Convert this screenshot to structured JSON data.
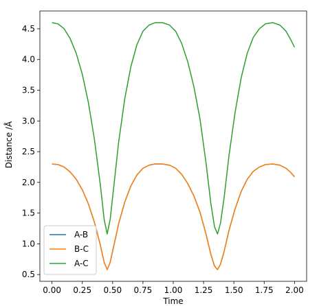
{
  "chart_data": {
    "type": "line",
    "title": "",
    "xlabel": "Time",
    "ylabel": "Distance /Å",
    "xlim": [
      -0.1,
      2.1
    ],
    "ylim": [
      0.39,
      4.79
    ],
    "xticks": [
      "0.00",
      "0.25",
      "0.50",
      "0.75",
      "1.00",
      "1.25",
      "1.50",
      "1.75",
      "2.00"
    ],
    "yticks": [
      "0.5",
      "1.0",
      "1.5",
      "2.0",
      "2.5",
      "3.0",
      "3.5",
      "4.0",
      "4.5"
    ],
    "grid": false,
    "legend_position": "lower-left",
    "series": [
      {
        "name": "A-B",
        "color": "#1f77b4",
        "x": [
          0.0,
          0.05,
          0.1,
          0.15,
          0.2,
          0.25,
          0.3,
          0.35,
          0.4,
          0.43,
          0.455,
          0.48,
          0.51,
          0.55,
          0.6,
          0.65,
          0.7,
          0.75,
          0.8,
          0.85,
          0.91,
          0.97,
          1.02,
          1.07,
          1.12,
          1.17,
          1.22,
          1.27,
          1.31,
          1.34,
          1.365,
          1.39,
          1.42,
          1.46,
          1.51,
          1.56,
          1.61,
          1.66,
          1.71,
          1.76,
          1.82,
          1.88,
          1.93,
          1.97,
          2.0
        ],
        "y": [
          2.3,
          2.29,
          2.25,
          2.17,
          2.05,
          1.88,
          1.65,
          1.35,
          0.97,
          0.7,
          0.58,
          0.7,
          0.97,
          1.33,
          1.68,
          1.94,
          2.12,
          2.23,
          2.28,
          2.3,
          2.3,
          2.28,
          2.23,
          2.13,
          1.98,
          1.78,
          1.52,
          1.16,
          0.83,
          0.64,
          0.58,
          0.67,
          0.88,
          1.22,
          1.57,
          1.85,
          2.05,
          2.18,
          2.25,
          2.29,
          2.3,
          2.28,
          2.23,
          2.16,
          2.09
        ]
      },
      {
        "name": "B-C",
        "color": "#ff7f0e",
        "x": [
          0.0,
          0.05,
          0.1,
          0.15,
          0.2,
          0.25,
          0.3,
          0.35,
          0.4,
          0.43,
          0.455,
          0.48,
          0.51,
          0.55,
          0.6,
          0.65,
          0.7,
          0.75,
          0.8,
          0.85,
          0.91,
          0.97,
          1.02,
          1.07,
          1.12,
          1.17,
          1.22,
          1.27,
          1.31,
          1.34,
          1.365,
          1.39,
          1.42,
          1.46,
          1.51,
          1.56,
          1.61,
          1.66,
          1.71,
          1.76,
          1.82,
          1.88,
          1.93,
          1.97,
          2.0
        ],
        "y": [
          2.3,
          2.29,
          2.25,
          2.17,
          2.05,
          1.88,
          1.65,
          1.35,
          0.97,
          0.7,
          0.58,
          0.7,
          0.97,
          1.33,
          1.68,
          1.94,
          2.12,
          2.23,
          2.28,
          2.3,
          2.3,
          2.28,
          2.23,
          2.13,
          1.98,
          1.78,
          1.52,
          1.16,
          0.83,
          0.64,
          0.58,
          0.67,
          0.88,
          1.22,
          1.57,
          1.85,
          2.05,
          2.18,
          2.25,
          2.29,
          2.3,
          2.28,
          2.23,
          2.16,
          2.09
        ]
      },
      {
        "name": "A-C",
        "color": "#2ca02c",
        "x": [
          0.0,
          0.05,
          0.1,
          0.15,
          0.2,
          0.25,
          0.3,
          0.35,
          0.4,
          0.43,
          0.455,
          0.48,
          0.51,
          0.55,
          0.6,
          0.65,
          0.7,
          0.75,
          0.8,
          0.85,
          0.91,
          0.97,
          1.02,
          1.07,
          1.12,
          1.17,
          1.22,
          1.27,
          1.31,
          1.34,
          1.365,
          1.39,
          1.42,
          1.46,
          1.51,
          1.56,
          1.61,
          1.66,
          1.71,
          1.76,
          1.82,
          1.88,
          1.93,
          1.97,
          2.0
        ],
        "y": [
          4.6,
          4.58,
          4.5,
          4.34,
          4.1,
          3.76,
          3.3,
          2.7,
          1.94,
          1.4,
          1.16,
          1.4,
          1.94,
          2.66,
          3.36,
          3.88,
          4.24,
          4.46,
          4.56,
          4.6,
          4.6,
          4.56,
          4.46,
          4.26,
          3.96,
          3.56,
          3.04,
          2.32,
          1.66,
          1.28,
          1.16,
          1.34,
          1.76,
          2.44,
          3.14,
          3.7,
          4.1,
          4.36,
          4.5,
          4.58,
          4.6,
          4.56,
          4.46,
          4.32,
          4.2
        ]
      }
    ]
  }
}
